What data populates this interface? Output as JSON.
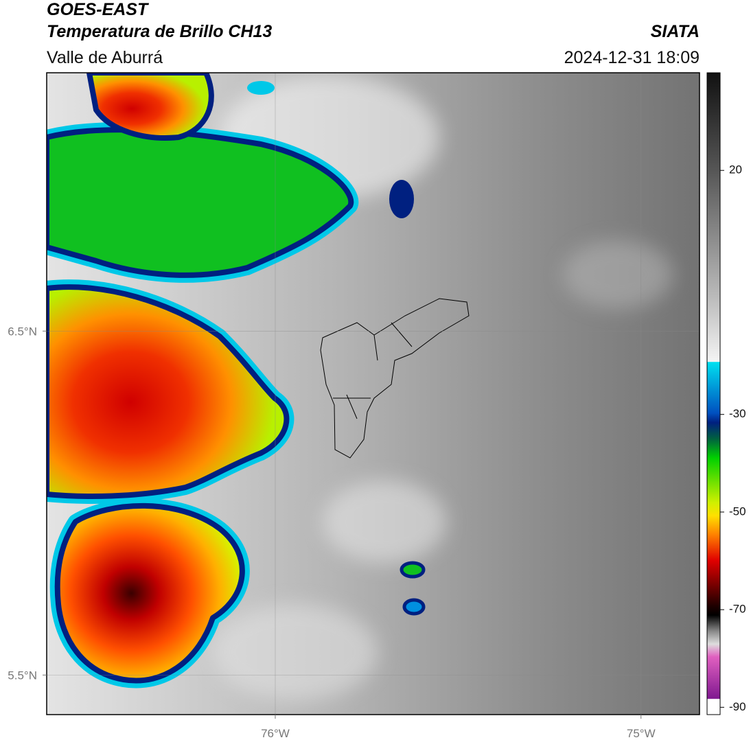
{
  "header": {
    "title": "GOES-EAST",
    "subtitle": "Temperatura de Brillo CH13",
    "region": "Valle de Aburrá",
    "source": "SIATA",
    "datetime": "2024-12-31 18:09"
  },
  "map": {
    "xlim": [
      -76.625,
      -74.84
    ],
    "ylim": [
      5.385,
      7.251
    ],
    "xticks": [
      {
        "value": -76,
        "label": "76°W"
      },
      {
        "value": -75,
        "label": "75°W"
      }
    ],
    "yticks": [
      {
        "value": 5.5,
        "label": "5.5°N"
      },
      {
        "value": 6.5,
        "label": "6.5°N"
      }
    ],
    "grid": true
  },
  "colorbar": {
    "lim": [
      -91.5,
      40
    ],
    "ticks": [
      -90,
      -70,
      -50,
      -30,
      20
    ]
  }
}
